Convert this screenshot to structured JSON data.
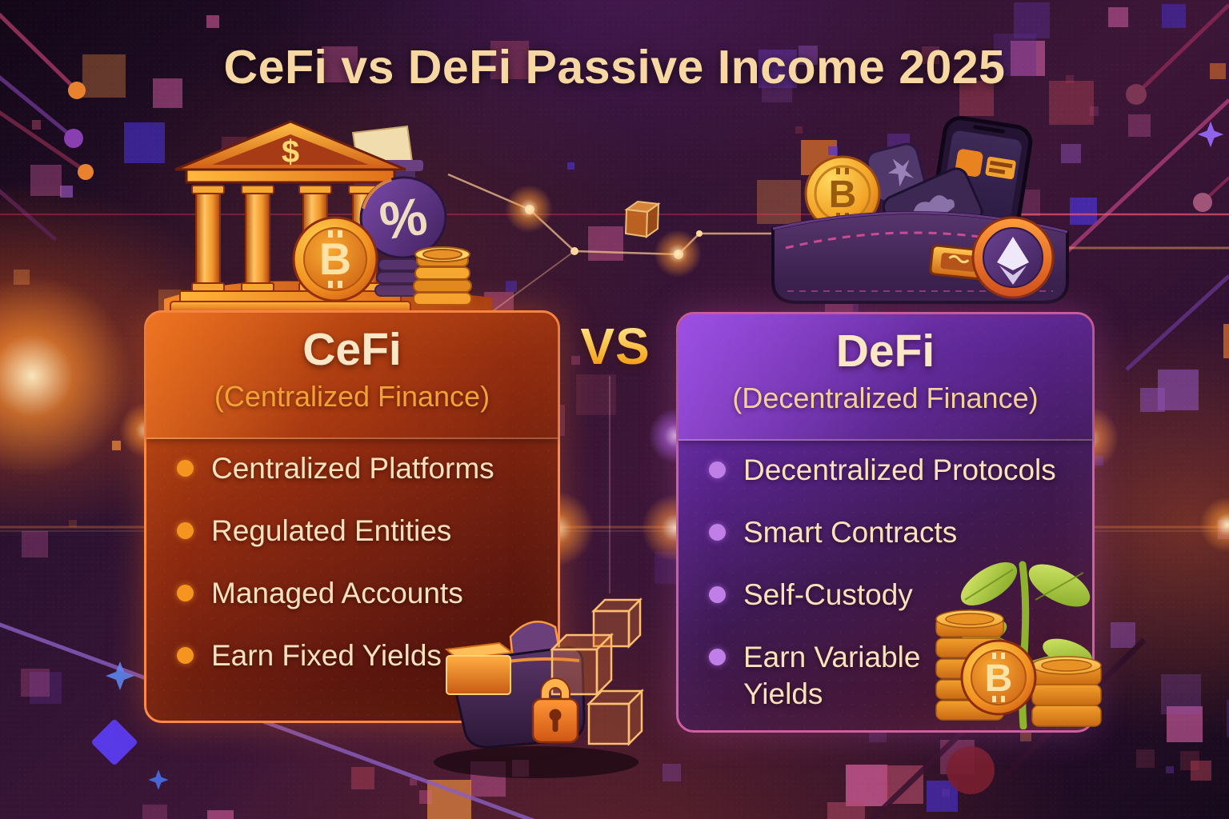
{
  "title": "CeFi vs DeFi Passive Income 2025",
  "versus_label": "VS",
  "cards": {
    "cefi": {
      "title": "CeFi",
      "subtitle": "(Centralized Finance)",
      "bullets": [
        "Centralized Platforms",
        "Regulated Entities",
        "Managed Accounts",
        "Earn Fixed Yields"
      ],
      "border_color": "#ff8a45",
      "bullet_dot_color": "#f5941f"
    },
    "defi": {
      "title": "DeFi",
      "subtitle": "(Decentralized Finance)",
      "bullets": [
        "Decentralized Protocols",
        "Smart Contracts",
        "Self-Custody",
        "Earn Variable Yields"
      ],
      "border_color": "#cf5f9e",
      "bullet_dot_color": "#bf7fe6"
    }
  },
  "icon_glyphs": {
    "dollar": "$",
    "percent": "%",
    "bitcoin": "B"
  },
  "colors": {
    "title_text": "#f8d8a2",
    "cefi_subtitle": "#f2a137",
    "defi_subtitle": "#f3cfa0",
    "bullet_text": "#fbe2bd",
    "vs_gradient_top": "#ffe182",
    "vs_gradient_bottom": "#f5a21a",
    "background_base": "#2a1130"
  }
}
